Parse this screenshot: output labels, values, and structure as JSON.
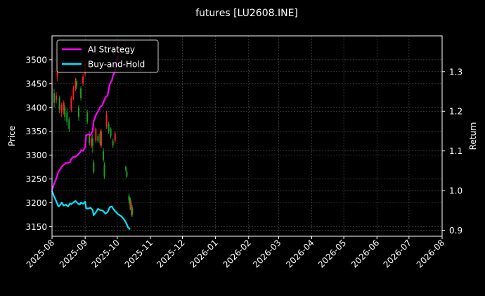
{
  "chart_data": {
    "type": "line",
    "title": "futures [LU2608.INE]",
    "ylabel": "Price",
    "y2label": "Return",
    "colors": {
      "background": "#000000",
      "ai_strategy": "#ff00ff",
      "buy_hold": "#00e5ff",
      "candle_up": "#ff2020",
      "candle_down": "#1fa01f",
      "grid": "#555555"
    },
    "xlim": [
      0,
      365
    ],
    "ylim": [
      3130,
      3550
    ],
    "y2lim": [
      0.885,
      1.39
    ],
    "grid": true,
    "legend_position": "top-left",
    "x_ticks": [
      {
        "label": "2025-08",
        "pos": 0
      },
      {
        "label": "2025-09",
        "pos": 31
      },
      {
        "label": "2025-10",
        "pos": 61
      },
      {
        "label": "2025-11",
        "pos": 92
      },
      {
        "label": "2025-12",
        "pos": 122
      },
      {
        "label": "2026-01",
        "pos": 153
      },
      {
        "label": "2026-02",
        "pos": 184
      },
      {
        "label": "2026-03",
        "pos": 212
      },
      {
        "label": "2026-04",
        "pos": 243
      },
      {
        "label": "2026-05",
        "pos": 273
      },
      {
        "label": "2026-06",
        "pos": 304
      },
      {
        "label": "2026-07",
        "pos": 334
      },
      {
        "label": "2026-08",
        "pos": 365
      }
    ],
    "y_ticks": [
      3150,
      3200,
      3250,
      3300,
      3350,
      3400,
      3450,
      3500
    ],
    "y2_ticks": [
      "0.9",
      "1.0",
      "1.1",
      "1.2",
      "1.3"
    ],
    "series": [
      {
        "name": "AI Strategy",
        "x": [
          0,
          2,
          4,
          6,
          8,
          9,
          11,
          13,
          15,
          17,
          18,
          20,
          22,
          24,
          26,
          27,
          29,
          31,
          32,
          34,
          36,
          38,
          39,
          41,
          43,
          45,
          47,
          48,
          50,
          52,
          54,
          56,
          57,
          59,
          60,
          62
        ],
        "values": [
          1.0,
          1.018,
          1.03,
          1.048,
          1.055,
          1.06,
          1.065,
          1.07,
          1.07,
          1.072,
          1.08,
          1.085,
          1.085,
          1.09,
          1.095,
          1.102,
          1.1,
          1.11,
          1.14,
          1.142,
          1.14,
          1.15,
          1.175,
          1.19,
          1.2,
          1.21,
          1.215,
          1.222,
          1.235,
          1.24,
          1.268,
          1.278,
          1.29,
          1.3,
          1.325,
          1.34
        ]
      },
      {
        "name": "Buy-and-Hold",
        "x": [
          0,
          2,
          4,
          6,
          8,
          9,
          11,
          13,
          15,
          17,
          18,
          20,
          22,
          24,
          26,
          27,
          29,
          31,
          32,
          34,
          36,
          38,
          39,
          41,
          43,
          45,
          47,
          48,
          50,
          52,
          54,
          56,
          57,
          59,
          60,
          62,
          64,
          66,
          68,
          70,
          71,
          73
        ],
        "values": [
          0.999,
          0.985,
          0.973,
          0.96,
          0.965,
          0.97,
          0.962,
          0.965,
          0.96,
          0.968,
          0.966,
          0.97,
          0.974,
          0.968,
          0.965,
          0.97,
          0.967,
          0.972,
          0.955,
          0.955,
          0.957,
          0.951,
          0.938,
          0.945,
          0.954,
          0.951,
          0.95,
          0.948,
          0.942,
          0.946,
          0.958,
          0.96,
          0.955,
          0.948,
          0.946,
          0.94,
          0.937,
          0.932,
          0.925,
          0.915,
          0.908,
          0.902
        ]
      }
    ],
    "candles": [
      {
        "x": 2,
        "open": 3430,
        "close": 3410,
        "high": 3438,
        "low": 3400
      },
      {
        "x": 4,
        "open": 3415,
        "close": 3425,
        "high": 3432,
        "low": 3408
      },
      {
        "x": 5,
        "open": 3465,
        "close": 3490,
        "high": 3510,
        "low": 3455
      },
      {
        "x": 7,
        "open": 3420,
        "close": 3395,
        "high": 3425,
        "low": 3388
      },
      {
        "x": 9,
        "open": 3390,
        "close": 3405,
        "high": 3410,
        "low": 3380
      },
      {
        "x": 11,
        "open": 3395,
        "close": 3410,
        "high": 3415,
        "low": 3385
      },
      {
        "x": 12,
        "open": 3400,
        "close": 3380,
        "high": 3405,
        "low": 3372
      },
      {
        "x": 14,
        "open": 3390,
        "close": 3370,
        "high": 3398,
        "low": 3362
      },
      {
        "x": 16,
        "open": 3375,
        "close": 3355,
        "high": 3380,
        "low": 3348
      },
      {
        "x": 18,
        "open": 3395,
        "close": 3420,
        "high": 3425,
        "low": 3390
      },
      {
        "x": 20,
        "open": 3420,
        "close": 3440,
        "high": 3445,
        "low": 3415
      },
      {
        "x": 22,
        "open": 3440,
        "close": 3455,
        "high": 3462,
        "low": 3435
      },
      {
        "x": 23,
        "open": 3455,
        "close": 3445,
        "high": 3460,
        "low": 3438
      },
      {
        "x": 25,
        "open": 3400,
        "close": 3380,
        "high": 3405,
        "low": 3372
      },
      {
        "x": 27,
        "open": 3440,
        "close": 3420,
        "high": 3445,
        "low": 3415
      },
      {
        "x": 29,
        "open": 3450,
        "close": 3465,
        "high": 3470,
        "low": 3445
      },
      {
        "x": 31,
        "open": 3470,
        "close": 3490,
        "high": 3498,
        "low": 3465
      },
      {
        "x": 33,
        "open": 3390,
        "close": 3370,
        "high": 3395,
        "low": 3365
      },
      {
        "x": 35,
        "open": 3345,
        "close": 3325,
        "high": 3350,
        "low": 3320
      },
      {
        "x": 37,
        "open": 3320,
        "close": 3335,
        "high": 3340,
        "low": 3315
      },
      {
        "x": 38,
        "open": 3335,
        "close": 3320,
        "high": 3345,
        "low": 3305
      },
      {
        "x": 39,
        "open": 3285,
        "close": 3265,
        "high": 3290,
        "low": 3260
      },
      {
        "x": 41,
        "open": 3330,
        "close": 3355,
        "high": 3358,
        "low": 3325
      },
      {
        "x": 43,
        "open": 3340,
        "close": 3330,
        "high": 3345,
        "low": 3325
      },
      {
        "x": 45,
        "open": 3345,
        "close": 3325,
        "high": 3352,
        "low": 3320
      },
      {
        "x": 46,
        "open": 3320,
        "close": 3350,
        "high": 3355,
        "low": 3315
      },
      {
        "x": 48,
        "open": 3308,
        "close": 3290,
        "high": 3315,
        "low": 3285
      },
      {
        "x": 49,
        "open": 3280,
        "close": 3255,
        "high": 3285,
        "low": 3250
      },
      {
        "x": 51,
        "open": 3360,
        "close": 3385,
        "high": 3392,
        "low": 3355
      },
      {
        "x": 53,
        "open": 3365,
        "close": 3350,
        "high": 3370,
        "low": 3345
      },
      {
        "x": 55,
        "open": 3355,
        "close": 3340,
        "high": 3358,
        "low": 3335
      },
      {
        "x": 57,
        "open": 3330,
        "close": 3320,
        "high": 3335,
        "low": 3315
      },
      {
        "x": 59,
        "open": 3330,
        "close": 3345,
        "high": 3350,
        "low": 3325
      },
      {
        "x": 61,
        "open": 3520,
        "close": 3530,
        "high": 3538,
        "low": 3515
      },
      {
        "x": 69,
        "open": 3275,
        "close": 3270,
        "high": 3278,
        "low": 3265
      },
      {
        "x": 70,
        "open": 3265,
        "close": 3255,
        "high": 3270,
        "low": 3252
      },
      {
        "x": 72,
        "open": 3215,
        "close": 3205,
        "high": 3220,
        "low": 3200
      },
      {
        "x": 73,
        "open": 3210,
        "close": 3195,
        "high": 3212,
        "low": 3185
      },
      {
        "x": 74,
        "open": 3185,
        "close": 3200,
        "high": 3205,
        "low": 3172
      },
      {
        "x": 75,
        "open": 3190,
        "close": 3175,
        "high": 3195,
        "low": 3170
      }
    ]
  }
}
